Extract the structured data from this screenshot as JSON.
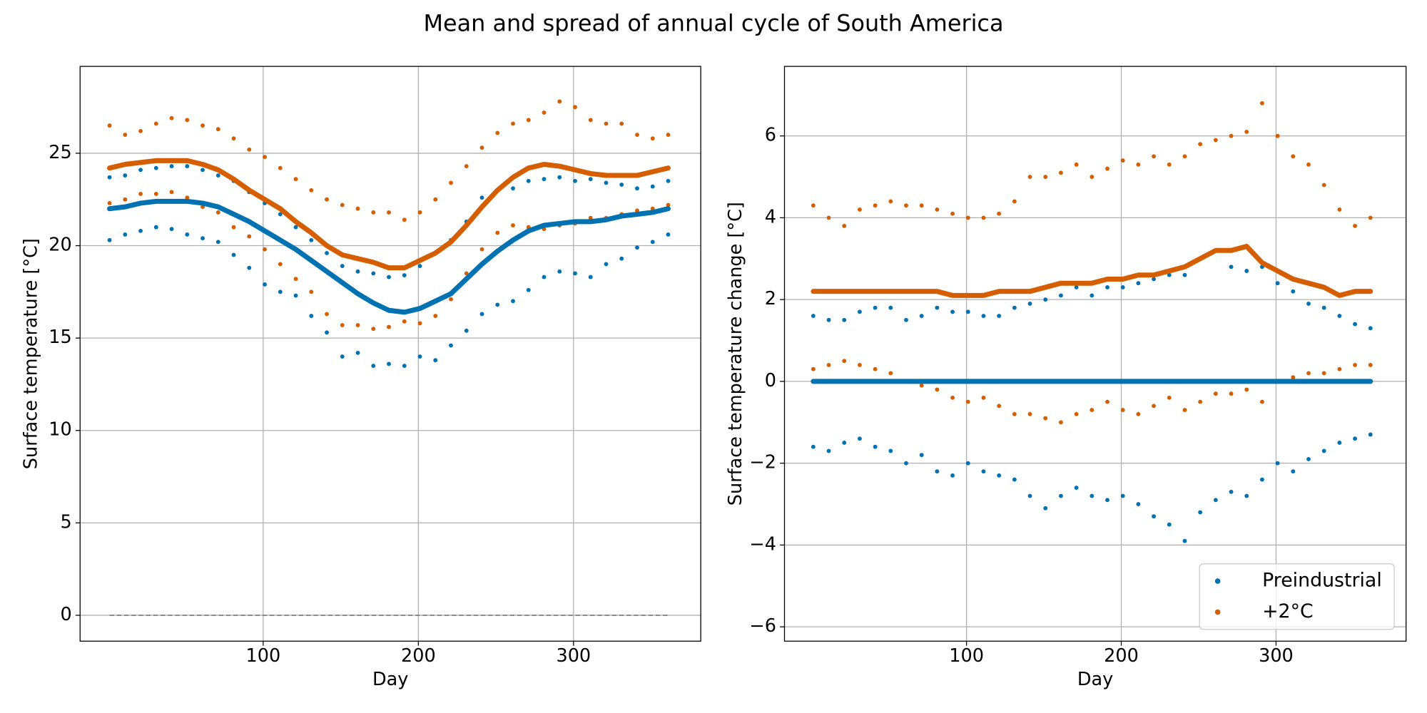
{
  "title": "Mean and spread of annual cycle of South America",
  "chart_data": [
    {
      "type": "scatter",
      "xlabel": "Day",
      "ylabel": "Surface temperature [°C]",
      "xlim": [
        -18,
        382
      ],
      "ylim": [
        -1.4,
        29.7
      ],
      "xticks": [
        100,
        200,
        300
      ],
      "yticks": [
        0,
        5,
        10,
        15,
        20,
        25
      ],
      "grid": true,
      "hline": 0,
      "x": [
        1,
        11,
        21,
        31,
        41,
        51,
        61,
        71,
        81,
        91,
        101,
        111,
        121,
        131,
        141,
        151,
        161,
        171,
        181,
        191,
        201,
        211,
        221,
        231,
        241,
        251,
        261,
        271,
        281,
        291,
        301,
        311,
        321,
        331,
        341,
        351,
        361
      ],
      "series": [
        {
          "color": "#0072b2",
          "mean": [
            22.0,
            22.1,
            22.3,
            22.4,
            22.4,
            22.4,
            22.3,
            22.1,
            21.7,
            21.3,
            20.8,
            20.3,
            19.8,
            19.2,
            18.6,
            18.0,
            17.4,
            16.9,
            16.5,
            16.4,
            16.6,
            17.0,
            17.4,
            18.2,
            19.0,
            19.7,
            20.3,
            20.8,
            21.1,
            21.2,
            21.3,
            21.3,
            21.4,
            21.6,
            21.7,
            21.8,
            22.0
          ],
          "upper": [
            23.7,
            23.8,
            24.1,
            24.2,
            24.3,
            24.3,
            24.1,
            23.8,
            23.5,
            22.9,
            22.3,
            21.7,
            21.0,
            20.3,
            19.6,
            18.9,
            18.6,
            18.5,
            18.3,
            18.4,
            18.9,
            19.6,
            20.3,
            21.3,
            22.6,
            23.0,
            23.1,
            23.5,
            23.6,
            23.7,
            23.5,
            23.6,
            23.4,
            23.3,
            23.1,
            23.2,
            23.5
          ],
          "lower": [
            20.3,
            20.6,
            20.8,
            21.0,
            20.9,
            20.6,
            20.4,
            20.2,
            19.5,
            18.8,
            17.9,
            17.5,
            17.3,
            16.2,
            15.3,
            14.0,
            14.2,
            13.5,
            13.6,
            13.5,
            14.0,
            13.8,
            14.6,
            15.4,
            16.3,
            16.8,
            17.0,
            17.6,
            18.3,
            18.6,
            18.5,
            18.3,
            19.0,
            19.3,
            19.9,
            20.2,
            20.6
          ]
        },
        {
          "color": "#d55e00",
          "mean": [
            24.2,
            24.4,
            24.5,
            24.6,
            24.6,
            24.6,
            24.4,
            24.1,
            23.6,
            23.0,
            22.5,
            22.0,
            21.3,
            20.7,
            20.0,
            19.5,
            19.3,
            19.1,
            18.8,
            18.8,
            19.2,
            19.6,
            20.2,
            21.1,
            22.1,
            23.0,
            23.7,
            24.2,
            24.4,
            24.3,
            24.1,
            23.9,
            23.8,
            23.8,
            23.8,
            24.0,
            24.2
          ],
          "upper": [
            26.5,
            26.0,
            26.2,
            26.6,
            26.9,
            26.8,
            26.5,
            26.3,
            25.8,
            25.2,
            24.8,
            24.2,
            23.6,
            23.0,
            22.5,
            22.2,
            22.0,
            21.8,
            21.8,
            21.4,
            21.8,
            22.5,
            23.4,
            24.3,
            25.3,
            26.1,
            26.6,
            26.8,
            27.2,
            27.8,
            27.5,
            26.8,
            26.6,
            26.6,
            26.0,
            25.8,
            26.0
          ],
          "lower": [
            22.3,
            22.5,
            22.8,
            22.8,
            22.9,
            22.6,
            22.1,
            21.8,
            21.0,
            20.5,
            19.8,
            19.0,
            18.2,
            17.5,
            16.3,
            15.7,
            15.7,
            15.5,
            15.6,
            15.9,
            15.8,
            16.2,
            17.1,
            18.5,
            19.8,
            20.7,
            21.1,
            21.0,
            20.9,
            21.1,
            21.2,
            21.5,
            21.5,
            21.7,
            21.9,
            22.0,
            22.2
          ]
        }
      ]
    },
    {
      "type": "scatter",
      "xlabel": "Day",
      "ylabel": "Surface temperature change [°C]",
      "xlim": [
        -17.6,
        384
      ],
      "ylim": [
        -6.35,
        7.7
      ],
      "xticks": [
        100,
        200,
        300
      ],
      "yticks": [
        {
          "value": -6,
          "label": "−6"
        },
        {
          "value": -4,
          "label": "−4"
        },
        {
          "value": -2,
          "label": "−2"
        },
        0,
        2,
        4,
        6
      ],
      "grid": true,
      "legend": "lower right",
      "x": [
        1,
        11,
        21,
        31,
        41,
        51,
        61,
        71,
        81,
        91,
        101,
        111,
        121,
        131,
        141,
        151,
        161,
        171,
        181,
        191,
        201,
        211,
        221,
        231,
        241,
        251,
        261,
        271,
        281,
        291,
        301,
        311,
        321,
        331,
        341,
        351,
        361
      ],
      "series": [
        {
          "name": "Preindustrial",
          "color": "#0072b2",
          "mean": [
            0,
            0,
            0,
            0,
            0,
            0,
            0,
            0,
            0,
            0,
            0,
            0,
            0,
            0,
            0,
            0,
            0,
            0,
            0,
            0,
            0,
            0,
            0,
            0,
            0,
            0,
            0,
            0,
            0,
            0,
            0,
            0,
            0,
            0,
            0,
            0,
            0
          ],
          "upper": [
            1.6,
            1.5,
            1.5,
            1.7,
            1.8,
            1.8,
            1.5,
            1.6,
            1.8,
            1.7,
            1.7,
            1.6,
            1.6,
            1.8,
            1.9,
            2.0,
            2.1,
            2.3,
            2.1,
            2.3,
            2.3,
            2.4,
            2.5,
            2.6,
            2.6,
            3.0,
            3.2,
            2.8,
            2.7,
            2.8,
            2.4,
            2.2,
            1.9,
            1.8,
            1.6,
            1.4,
            1.3
          ],
          "lower": [
            -1.6,
            -1.7,
            -1.5,
            -1.4,
            -1.6,
            -1.7,
            -2.0,
            -1.8,
            -2.2,
            -2.3,
            -2.0,
            -2.2,
            -2.3,
            -2.4,
            -2.8,
            -3.1,
            -2.8,
            -2.6,
            -2.8,
            -2.9,
            -2.8,
            -3.0,
            -3.3,
            -3.5,
            -3.9,
            -3.2,
            -2.9,
            -2.7,
            -2.8,
            -2.4,
            -2.0,
            -2.2,
            -1.9,
            -1.7,
            -1.5,
            -1.4,
            -1.3
          ]
        },
        {
          "name": "+2°C",
          "color": "#d55e00",
          "mean": [
            2.2,
            2.2,
            2.2,
            2.2,
            2.2,
            2.2,
            2.2,
            2.2,
            2.2,
            2.1,
            2.1,
            2.1,
            2.2,
            2.2,
            2.2,
            2.3,
            2.4,
            2.4,
            2.4,
            2.5,
            2.5,
            2.6,
            2.6,
            2.7,
            2.8,
            3.0,
            3.2,
            3.2,
            3.3,
            2.9,
            2.7,
            2.5,
            2.4,
            2.3,
            2.1,
            2.2,
            2.2
          ],
          "upper": [
            4.3,
            4.0,
            3.8,
            4.2,
            4.3,
            4.4,
            4.3,
            4.3,
            4.2,
            4.1,
            4.0,
            4.0,
            4.1,
            4.4,
            5.0,
            5.0,
            5.1,
            5.3,
            5.0,
            5.2,
            5.4,
            5.3,
            5.5,
            5.3,
            5.5,
            5.8,
            5.9,
            6.0,
            6.1,
            6.8,
            6.0,
            5.5,
            5.3,
            4.8,
            4.2,
            3.8,
            4.0
          ],
          "lower": [
            0.3,
            0.4,
            0.5,
            0.4,
            0.3,
            0.2,
            0.0,
            -0.1,
            -0.2,
            -0.4,
            -0.5,
            -0.4,
            -0.6,
            -0.8,
            -0.8,
            -0.9,
            -1.0,
            -0.8,
            -0.7,
            -0.5,
            -0.7,
            -0.8,
            -0.6,
            -0.4,
            -0.7,
            -0.5,
            -0.3,
            -0.3,
            -0.2,
            -0.5,
            0.0,
            0.1,
            0.2,
            0.2,
            0.3,
            0.4,
            0.4
          ]
        }
      ]
    }
  ]
}
